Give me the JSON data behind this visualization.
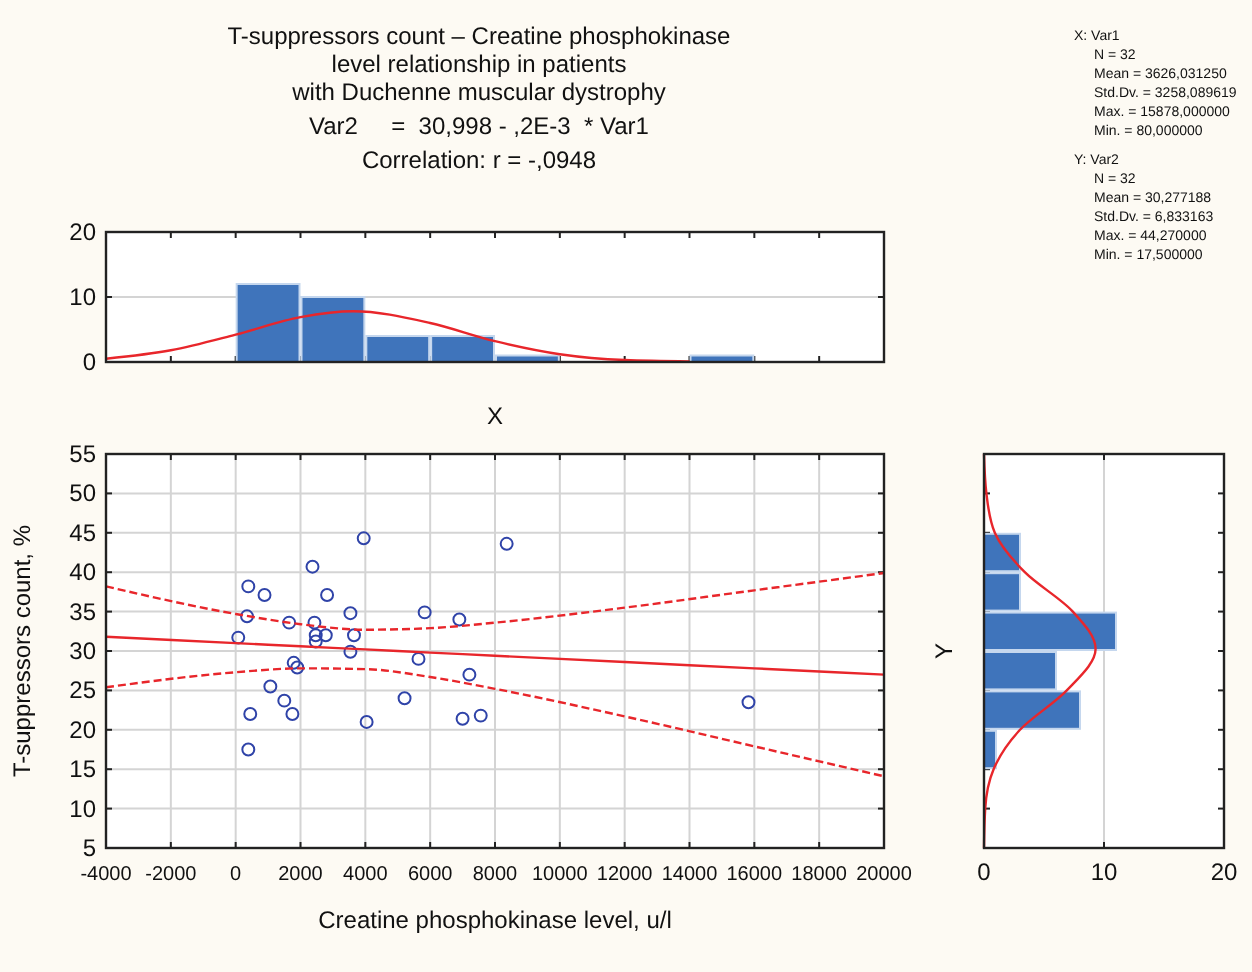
{
  "chart_data": [
    {
      "type": "histogram",
      "title": "T-suppressors count – Creatine phosphokinase\nlevel relationship in patients\nwith Duchenne muscular dystrophy",
      "subtitle": "Var2     =  30,998 - ,2E-3  * Var1",
      "annotations": [
        "Correlation: r = -,0948"
      ],
      "xlabel": "X",
      "xlim": [
        -4000,
        20000
      ],
      "xticks": [
        {
          "value": -4000,
          "label": null
        },
        {
          "value": -2000,
          "label": null
        },
        {
          "value": 0,
          "label": null
        },
        {
          "value": 2000,
          "label": null
        },
        {
          "value": 4000,
          "label": null
        },
        {
          "value": 6000,
          "label": null
        },
        {
          "value": 8000,
          "label": null
        },
        {
          "value": 10000,
          "label": null
        },
        {
          "value": 12000,
          "label": null
        },
        {
          "value": 14000,
          "label": null
        },
        {
          "value": 16000,
          "label": null
        },
        {
          "value": 18000,
          "label": null
        },
        {
          "value": 20000,
          "label": null
        }
      ],
      "ylim": [
        0,
        20
      ],
      "yticks": [
        0,
        10,
        20
      ],
      "grid": "y",
      "tick_labels": "y",
      "series": [
        {
          "type": "histogram",
          "color": "#3f74bb",
          "bins": [
            -4000,
            -2000,
            0,
            2000,
            4000,
            6000,
            8000,
            10000,
            12000,
            14000,
            16000,
            18000,
            20000
          ],
          "values": [
            0,
            0,
            12,
            10,
            4,
            4,
            1,
            0,
            0,
            1,
            0,
            0
          ]
        },
        {
          "type": "line",
          "color": "#e8262b",
          "x": [
            -4000,
            -2000,
            0,
            2000,
            3626,
            6000,
            8000,
            10000,
            12000,
            14000
          ],
          "values": [
            0.5,
            1.8,
            4.2,
            6.9,
            7.8,
            6.0,
            3.2,
            1.2,
            0.3,
            0.1
          ]
        }
      ]
    },
    {
      "type": "scatter",
      "xlabel": "Creatine phosphokinase level, u/l",
      "ylabel": "T-suppressors count, %",
      "xlim": [
        -4000,
        20000
      ],
      "xticks": [
        -4000,
        -2000,
        0,
        2000,
        4000,
        6000,
        8000,
        10000,
        12000,
        14000,
        16000,
        18000,
        20000
      ],
      "ylim": [
        5,
        55
      ],
      "yticks": [
        5,
        10,
        15,
        20,
        25,
        30,
        35,
        40,
        45,
        50,
        55
      ],
      "grid": true,
      "series": [
        {
          "type": "scatter",
          "marker": "circle",
          "color": "#2f43a8",
          "x": [
            80,
            390,
            350,
            450,
            390,
            890,
            1070,
            1650,
            1500,
            1750,
            1790,
            1900,
            2370,
            2430,
            2470,
            2470,
            2780,
            2820,
            3540,
            3650,
            3540,
            3950,
            4040,
            5210,
            5640,
            5830,
            6900,
            7000,
            7210,
            7560,
            8360,
            15820
          ],
          "values": [
            31.7,
            38.2,
            34.4,
            22.0,
            17.5,
            37.1,
            25.5,
            33.6,
            23.7,
            22.0,
            28.5,
            27.9,
            40.7,
            33.6,
            32.0,
            31.2,
            32.0,
            37.1,
            34.8,
            32.0,
            29.9,
            44.3,
            21.0,
            24.0,
            29.0,
            34.9,
            34.0,
            21.4,
            27.0,
            21.8,
            43.6,
            23.5
          ]
        },
        {
          "type": "line",
          "color": "#e8262b",
          "x": [
            -4000,
            0,
            2000,
            4000,
            6000,
            8000,
            12000,
            16000,
            20000
          ],
          "values": [
            31.8,
            31.0,
            30.6,
            30.2,
            29.8,
            29.4,
            28.6,
            27.8,
            27.0
          ],
          "line_style": "solid"
        },
        {
          "type": "line",
          "color": "#e8262b",
          "x": [
            -4000,
            0,
            2000,
            4000,
            6000,
            8000,
            12000,
            16000,
            20000
          ],
          "values": [
            38.2,
            34.7,
            33.4,
            32.7,
            32.9,
            33.6,
            35.5,
            37.7,
            39.9
          ],
          "line_style": "dashed"
        },
        {
          "type": "line",
          "color": "#e8262b",
          "x": [
            -4000,
            0,
            2000,
            4000,
            6000,
            8000,
            12000,
            16000,
            20000
          ],
          "values": [
            25.4,
            27.3,
            27.8,
            27.7,
            26.7,
            25.2,
            21.7,
            17.9,
            14.1
          ],
          "line_style": "dashed"
        }
      ]
    },
    {
      "type": "histogram",
      "orientation": "horizontal",
      "ylabel": "Y",
      "xlim": [
        0,
        20
      ],
      "xticks": [
        0,
        10,
        20
      ],
      "ylim": [
        5,
        55
      ],
      "yticks": [
        {
          "value": 5,
          "label": null
        },
        {
          "value": 10,
          "label": null
        },
        {
          "value": 15,
          "label": null
        },
        {
          "value": 20,
          "label": null
        },
        {
          "value": 25,
          "label": null
        },
        {
          "value": 30,
          "label": null
        },
        {
          "value": 35,
          "label": null
        },
        {
          "value": 40,
          "label": null
        },
        {
          "value": 45,
          "label": null
        },
        {
          "value": 50,
          "label": null
        },
        {
          "value": 55,
          "label": null
        }
      ],
      "grid": "x",
      "tick_labels": "x",
      "series": [
        {
          "type": "histogram",
          "color": "#3f74bb",
          "bins": [
            5,
            10,
            15,
            20,
            25,
            30,
            35,
            40,
            45,
            50,
            55
          ],
          "values": [
            0,
            0,
            1,
            8,
            6,
            11,
            3,
            3,
            0,
            0
          ]
        },
        {
          "type": "line",
          "color": "#e8262b",
          "x": [
            5,
            10,
            15,
            20,
            25,
            30.28,
            35,
            40,
            45,
            50,
            55
          ],
          "values": [
            0,
            0.1,
            0.8,
            3.0,
            6.9,
            9.3,
            7.4,
            3.4,
            0.9,
            0.2,
            0
          ]
        }
      ]
    },
    {
      "type": "other",
      "annotations": [
        "X:  Var1\nN = 32\nMean = 3626,031250\nStd.Dv. = 3258,089619\nMax. = 15878,000000\nMin. = 80,000000",
        "Y:  Var2\nN = 32\nMean = 30,277188\nStd.Dv. = 6,833163\nMax. = 44,270000\nMin. = 17,500000"
      ]
    }
  ]
}
